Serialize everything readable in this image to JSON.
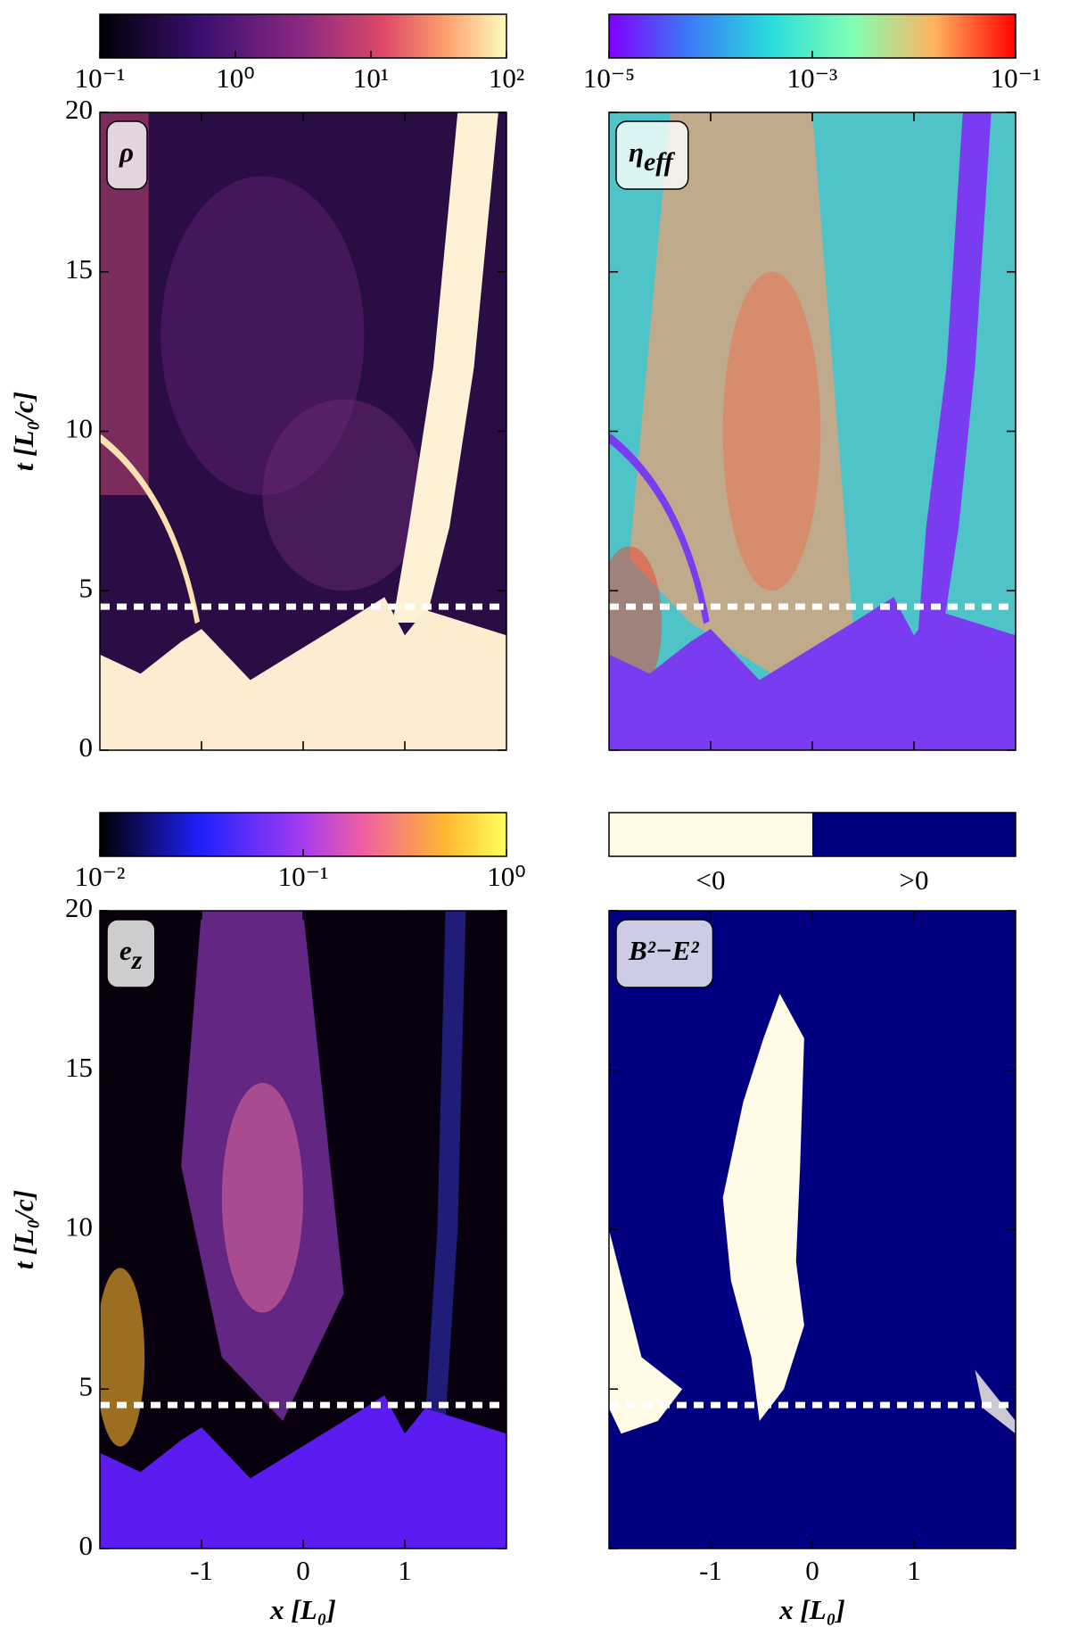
{
  "chart_data": [
    {
      "type": "heatmap",
      "label": "ρ",
      "colorbar": {
        "colormap": "magma",
        "log": true,
        "lim": [
          0.1,
          100
        ],
        "ticks": [
          {
            "value": 0.1,
            "label": "10⁻¹"
          },
          {
            "value": 1,
            "label": "10⁰"
          },
          {
            "value": 10,
            "label": "10¹"
          },
          {
            "value": 100,
            "label": "10²"
          }
        ]
      },
      "xlim": [
        -2,
        2
      ],
      "xticks": [
        -1,
        0,
        1
      ],
      "ylim": [
        0,
        20
      ],
      "yticks": [
        0,
        5,
        10,
        15,
        20
      ],
      "ylabel": "t [L₀/c]",
      "tick_labels": {
        "x": false,
        "y": true
      },
      "hline": 4.5
    },
    {
      "type": "heatmap",
      "label": {
        "symbol": "η",
        "subscript": "eff"
      },
      "colorbar": {
        "colormap": "rainbow",
        "log": true,
        "lim": [
          1e-05,
          0.1
        ],
        "ticks": [
          {
            "value": 1e-05,
            "label": "10⁻⁵"
          },
          {
            "value": 0.001,
            "label": "10⁻³"
          },
          {
            "value": 0.1,
            "label": "10⁻¹"
          }
        ]
      },
      "xlim": [
        -2,
        2
      ],
      "xticks": [
        -1,
        0,
        1
      ],
      "ylim": [
        0,
        20
      ],
      "yticks": [
        0,
        5,
        10,
        15,
        20
      ],
      "tick_labels": {
        "x": false,
        "y": false
      },
      "hline": 4.5
    },
    {
      "type": "heatmap",
      "label": {
        "symbol": "e",
        "subscript": "z"
      },
      "colorbar": {
        "colormap": "gnuplot2",
        "log": true,
        "lim": [
          0.01,
          1
        ],
        "ticks": [
          {
            "value": 0.01,
            "label": "10⁻²"
          },
          {
            "value": 0.1,
            "label": "10⁻¹"
          },
          {
            "value": 1,
            "label": "10⁰"
          }
        ]
      },
      "xlim": [
        -2,
        2
      ],
      "xticks": [
        -1,
        0,
        1
      ],
      "ylim": [
        0,
        20
      ],
      "yticks": [
        0,
        5,
        10,
        15,
        20
      ],
      "xlabel": "x [L₀]",
      "ylabel": "t [L₀/c]",
      "tick_labels": {
        "x": true,
        "y": true
      },
      "hline": 4.5
    },
    {
      "type": "heatmap",
      "label": "B²−E²",
      "colorbar": {
        "colormap": "categorical",
        "categories": [
          "<0",
          ">0"
        ],
        "colors": [
          "#fffbe6",
          "#000080"
        ]
      },
      "xlim": [
        -2,
        2
      ],
      "xticks": [
        -1,
        0,
        1
      ],
      "ylim": [
        0,
        20
      ],
      "yticks": [
        0,
        5,
        10,
        15,
        20
      ],
      "xlabel": "x [L₀]",
      "tick_labels": {
        "x": true,
        "y": false
      },
      "hline": 4.5
    }
  ]
}
